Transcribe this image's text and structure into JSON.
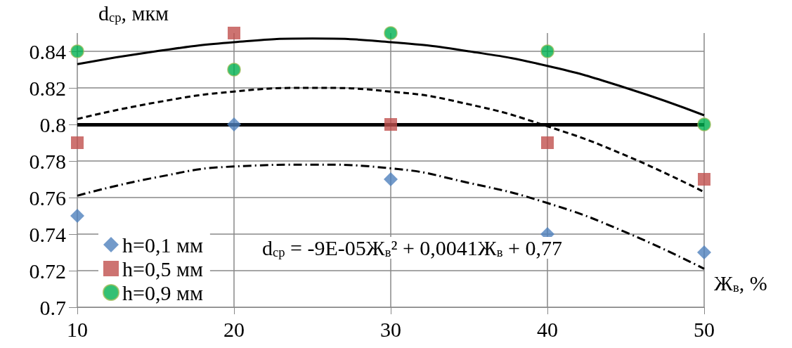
{
  "chart_data": {
    "type": "scatter",
    "xlabel": "Ж$_{в}$, %",
    "ylabel": "d$_{ср}$, мкм",
    "xlim": [
      10,
      50
    ],
    "xticks": [
      10,
      20,
      30,
      40,
      50
    ],
    "ylim": [
      0.7,
      0.85
    ],
    "yticks": [
      0.7,
      0.72,
      0.74,
      0.76,
      0.78,
      0.8,
      0.82,
      0.84
    ],
    "grid": true,
    "legend": "bottom left",
    "series": [
      {
        "name": "h=0,1 мм",
        "color": "#4f81bd",
        "marker": "diamond",
        "x": [
          10,
          20,
          30,
          40,
          50
        ],
        "values": [
          0.75,
          0.8,
          0.77,
          0.74,
          0.73
        ]
      },
      {
        "name": "h=0,5 мм",
        "color": "#c0504d",
        "marker": "square",
        "x": [
          10,
          20,
          30,
          40,
          50
        ],
        "values": [
          0.79,
          0.85,
          0.8,
          0.79,
          0.77
        ]
      },
      {
        "name": "h=0,9 мм",
        "color": "#00b050",
        "marker": "circle",
        "x": [
          10,
          20,
          30,
          40,
          50
        ],
        "values": [
          0.84,
          0.83,
          0.85,
          0.84,
          0.8
        ]
      },
      {
        "type": "line",
        "color": "#000000",
        "line_style": "dashdot",
        "marker": "none",
        "x": [
          10,
          15,
          20,
          25,
          30,
          35,
          40,
          45,
          50
        ],
        "values": [
          0.761,
          0.771,
          0.777,
          0.778,
          0.776,
          0.768,
          0.757,
          0.741,
          0.721
        ]
      },
      {
        "type": "line",
        "color": "#000000",
        "line_style": "dashed",
        "marker": "none",
        "x": [
          10,
          15,
          20,
          25,
          30,
          35,
          40,
          45,
          50
        ],
        "values": [
          0.803,
          0.812,
          0.818,
          0.82,
          0.818,
          0.811,
          0.799,
          0.783,
          0.763
        ]
      },
      {
        "type": "line",
        "color": "#000000",
        "line_style": "solid",
        "marker": "none",
        "x": [
          10,
          15,
          20,
          25,
          30,
          35,
          40,
          45,
          50
        ],
        "values": [
          0.833,
          0.84,
          0.845,
          0.847,
          0.845,
          0.84,
          0.832,
          0.82,
          0.805
        ]
      }
    ],
    "ref_lines": [
      {
        "axis": "y",
        "value": 0.8,
        "color": "#000000"
      }
    ],
    "annotations": [
      "d$_{ср}$ = -9E-05Ж$_{в}$² + 0,0041Ж$_{в}$ + 0,77"
    ]
  }
}
